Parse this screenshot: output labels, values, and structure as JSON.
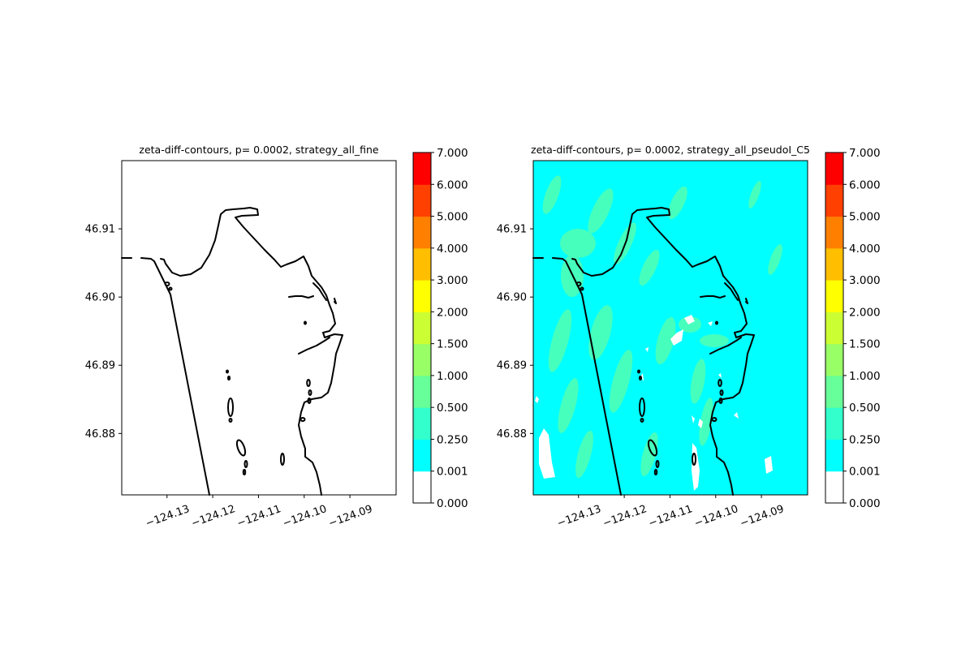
{
  "chart_data": [
    {
      "type": "heatmap",
      "title": "zeta-diff-contours, p= 0.0002, strategy_all_fine",
      "xlabel": "",
      "ylabel": "",
      "x_ticks": [
        -124.13,
        -124.12,
        -124.11,
        -124.1,
        -124.09
      ],
      "x_tick_labels": [
        "−124.13",
        "−124.12",
        "−124.11",
        "−124.10",
        "−124.09"
      ],
      "y_ticks": [
        46.88,
        46.89,
        46.9,
        46.91
      ],
      "y_tick_labels": [
        "46.88",
        "46.89",
        "46.90",
        "46.91"
      ],
      "xlim": [
        -124.1399,
        -124.0799
      ],
      "ylim": [
        46.871,
        46.92
      ],
      "field": "none (all values 0.000, white)",
      "grid": false
    },
    {
      "type": "heatmap",
      "title": "zeta-diff-contours, p= 0.0002, strategy_all_pseudoI_C5",
      "xlabel": "",
      "ylabel": "",
      "x_ticks": [
        -124.13,
        -124.12,
        -124.11,
        -124.1,
        -124.09
      ],
      "x_tick_labels": [
        "−124.13",
        "−124.12",
        "−124.11",
        "−124.10",
        "−124.09"
      ],
      "y_ticks": [
        46.88,
        46.89,
        46.9,
        46.91
      ],
      "y_tick_labels": [
        "46.88",
        "46.89",
        "46.90",
        "46.91"
      ],
      "xlim": [
        -124.1399,
        -124.0799
      ],
      "ylim": [
        46.871,
        46.92
      ],
      "field": "mostly 0.001-0.250 (cyan) with patches of 0.250-1.000 (light green) and small white 0.000 areas",
      "grid": false
    }
  ],
  "colorbar": {
    "levels": [
      "0.000",
      "0.001",
      "0.250",
      "0.500",
      "1.000",
      "1.500",
      "2.000",
      "3.000",
      "4.000",
      "5.000",
      "6.000",
      "7.000"
    ],
    "colors": [
      "#ffffff",
      "#00ffff",
      "#33ffcc",
      "#66ff99",
      "#99ff66",
      "#ccff33",
      "#ffff00",
      "#ffbf00",
      "#ff8000",
      "#ff4000",
      "#ff0000"
    ]
  }
}
